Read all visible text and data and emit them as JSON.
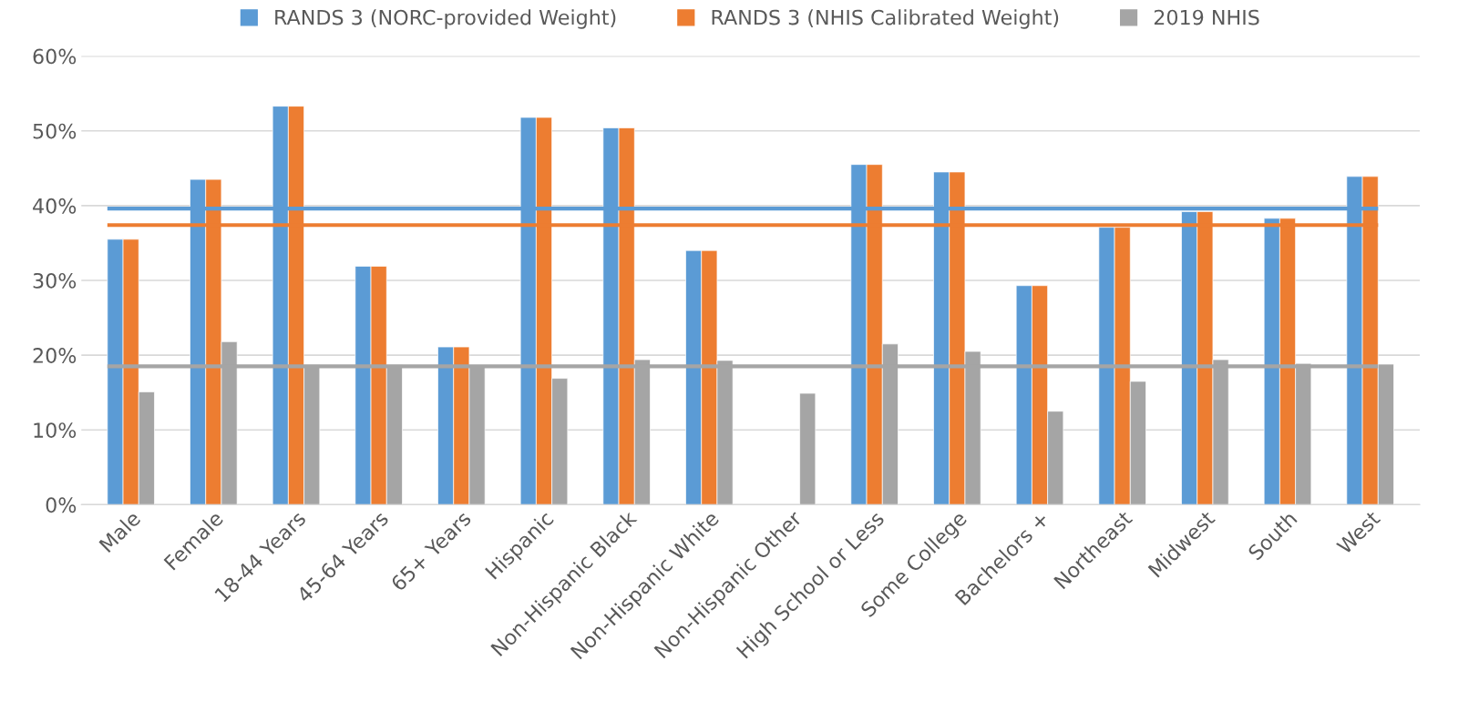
{
  "chart_data": {
    "type": "bar",
    "categories": [
      "Male",
      "Female",
      "18-44 Years",
      "45-64 Years",
      "65+ Years",
      "Hispanic",
      "Non-Hispanic Black",
      "Non-Hispanic White",
      "Non-Hispanic Other",
      "High School or Less",
      "Some College",
      "Bachelors +",
      "Northeast",
      "Midwest",
      "South",
      "West"
    ],
    "series": [
      {
        "name": "RANDS 3 (NORC-provided Weight)",
        "color": "#5b9bd5",
        "values": [
          35.5,
          43.5,
          53.3,
          31.9,
          21.1,
          51.8,
          50.4,
          34.0,
          null,
          45.5,
          44.5,
          29.3,
          37.1,
          39.2,
          38.3,
          43.9
        ]
      },
      {
        "name": "RANDS 3 (NHIS Calibrated Weight)",
        "color": "#ed7d31",
        "values": [
          35.5,
          43.5,
          53.3,
          31.9,
          21.1,
          51.8,
          50.4,
          34.0,
          null,
          45.5,
          44.5,
          29.3,
          37.1,
          39.2,
          38.3,
          43.9
        ]
      },
      {
        "name": "2019 NHIS",
        "color": "#a5a5a5",
        "values": [
          15.1,
          21.8,
          18.7,
          18.7,
          18.6,
          16.9,
          19.4,
          19.3,
          14.9,
          21.5,
          20.5,
          12.5,
          16.5,
          19.4,
          18.9,
          18.8
        ]
      }
    ],
    "ref_lines": [
      {
        "axis": "y",
        "value": 39.6,
        "color": "#5b9bd5"
      },
      {
        "axis": "y",
        "value": 37.4,
        "color": "#ed7d31"
      },
      {
        "axis": "y",
        "value": 18.5,
        "color": "#a5a5a5"
      }
    ],
    "ylim": [
      0,
      60
    ],
    "yticks": [
      {
        "value": 0,
        "label": "0%"
      },
      {
        "value": 10,
        "label": "10%"
      },
      {
        "value": 20,
        "label": "20%"
      },
      {
        "value": 30,
        "label": "30%"
      },
      {
        "value": 40,
        "label": "40%"
      },
      {
        "value": 50,
        "label": "50%"
      },
      {
        "value": 60,
        "label": "60%"
      }
    ],
    "grid": "y",
    "legend": "top"
  }
}
